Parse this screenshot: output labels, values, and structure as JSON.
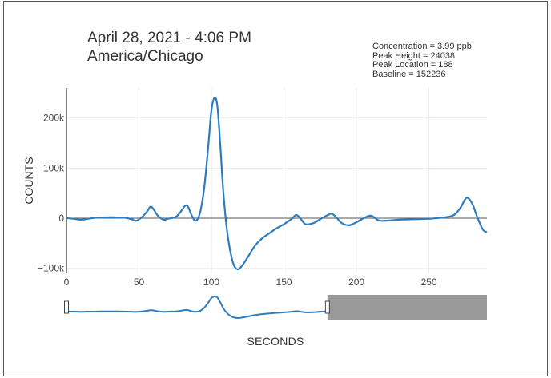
{
  "header": {
    "title_line1": "April 28, 2021 - 4:06 PM",
    "title_line2": "America/Chicago"
  },
  "stats": {
    "concentration": "Concentration = 3.99 ppb",
    "peak_height": "Peak Height = 24038",
    "peak_location": "Peak Location = 188",
    "baseline": "Baseline = 152236"
  },
  "chart_data": {
    "type": "line",
    "title": "April 28, 2021 - 4:06 PM America/Chicago",
    "xlabel": "SECONDS",
    "ylabel": "COUNTS",
    "xlim": [
      0,
      290
    ],
    "ylim": [
      -110000,
      260000
    ],
    "grid": true,
    "x_ticks": [
      0,
      50,
      100,
      150,
      200,
      250
    ],
    "x_tick_labels": [
      "0",
      "50",
      "100",
      "150",
      "200",
      "250"
    ],
    "y_ticks": [
      -100000,
      0,
      100000,
      200000
    ],
    "y_tick_labels": [
      "−100k",
      "0",
      "100k",
      "200k"
    ],
    "series": [
      {
        "color": "#2f7bbf",
        "x": [
          0,
          5,
          10,
          15,
          20,
          25,
          30,
          35,
          40,
          45,
          48,
          52,
          56,
          58,
          60,
          63,
          67,
          70,
          75,
          78,
          82,
          84,
          86,
          89,
          92,
          95,
          98,
          100,
          102,
          104,
          106,
          108,
          110,
          112,
          115,
          118,
          121,
          125,
          130,
          135,
          140,
          145,
          150,
          155,
          158,
          160,
          162,
          165,
          170,
          175,
          180,
          183,
          186,
          190,
          195,
          200,
          205,
          210,
          215,
          220,
          230,
          240,
          250,
          255,
          260,
          264,
          268,
          272,
          275,
          277,
          280,
          283,
          287,
          290
        ],
        "y": [
          0,
          -1000,
          -3000,
          -1000,
          1000,
          1500,
          2000,
          1500,
          1000,
          -2000,
          -5000,
          2000,
          15000,
          23000,
          18000,
          5000,
          -3000,
          -1000,
          2000,
          10000,
          25000,
          22000,
          8000,
          -5000,
          10000,
          60000,
          150000,
          215000,
          240000,
          225000,
          150000,
          60000,
          -5000,
          -50000,
          -90000,
          -102000,
          -95000,
          -78000,
          -55000,
          -40000,
          -30000,
          -20000,
          -12000,
          -2000,
          6000,
          4000,
          -3000,
          -12000,
          -10000,
          -2000,
          6000,
          9000,
          2000,
          -10000,
          -14000,
          -8000,
          0,
          5000,
          -4000,
          -5000,
          -3000,
          -2000,
          -1000,
          0,
          1500,
          3000,
          8000,
          22000,
          38000,
          40000,
          28000,
          5000,
          -22000,
          -28000
        ]
      }
    ],
    "range_slider": {
      "xlim": [
        0,
        290
      ],
      "selected_range": [
        0,
        180
      ]
    }
  }
}
